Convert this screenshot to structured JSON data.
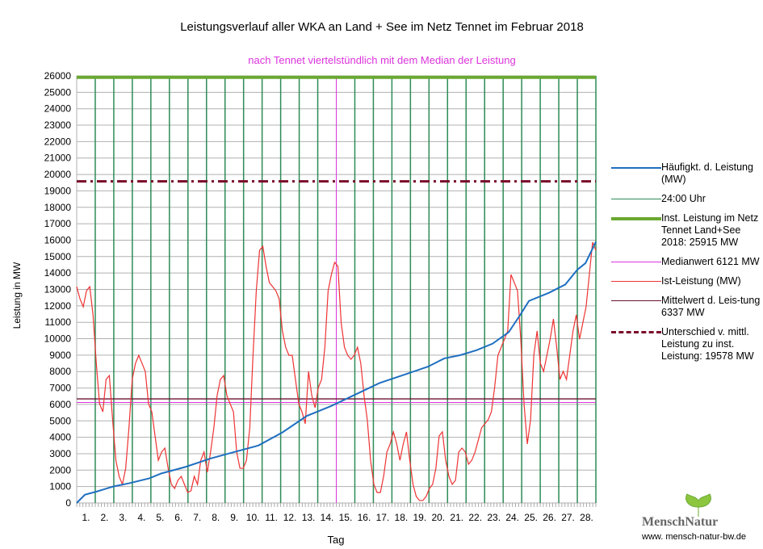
{
  "chart_data": {
    "type": "line",
    "title": "Leistungsverlauf aller WKA an Land + See im Netz Tennet im Februar 2018",
    "subtitle": "nach Tennet viertelstündlich mit dem Median der Leistung",
    "xlabel": "Tag",
    "ylabel": "Leistung in MW",
    "ylim": [
      0,
      26000
    ],
    "xlim": [
      0,
      28
    ],
    "ytick_step": 1000,
    "xtick_labels": [
      "1.",
      "2.",
      "3.",
      "4.",
      "5.",
      "6.",
      "7.",
      "8.",
      "9.",
      "10.",
      "11.",
      "12.",
      "13.",
      "14.",
      "15.",
      "16.",
      "17.",
      "18.",
      "19.",
      "20.",
      "21.",
      "22.",
      "23.",
      "24.",
      "25.",
      "26.",
      "27.",
      "28."
    ],
    "grid": true,
    "legend_position": "right",
    "colors": {
      "ist": "#ee3333",
      "haeufigkeit": "#1f6fc0",
      "day_lines": "#2e8b57",
      "installed": "#6aa832",
      "median": "#dd33dd",
      "mean": "#6b1030",
      "difference": "#7a0a2a"
    },
    "series": [
      {
        "name": "Ist-Leistung (MW)",
        "values": [
          13170,
          12430,
          11940,
          12920,
          13170,
          11450,
          8500,
          6040,
          5550,
          7520,
          7760,
          5060,
          2600,
          1620,
          1130,
          2110,
          4570,
          7520,
          8500,
          8990,
          8500,
          8010,
          6040,
          5550,
          4080,
          2600,
          3100,
          3340,
          2110,
          1130,
          880,
          1380,
          1620,
          1130,
          640,
          740,
          1620,
          1130,
          2600,
          3100,
          1870,
          3100,
          4570,
          6540,
          7520,
          7760,
          6540,
          6040,
          5550,
          3100,
          2110,
          2110,
          2600,
          4570,
          8990,
          12920,
          15380,
          15620,
          14400,
          13420,
          13170,
          12920,
          12430,
          10470,
          9480,
          8990,
          8990,
          7520,
          6040,
          5550,
          4820,
          8010,
          6540,
          5800,
          7030,
          7520,
          9480,
          12920,
          13910,
          14650,
          14400,
          10960,
          9480,
          8990,
          8750,
          8990,
          9480,
          8500,
          6540,
          5060,
          2600,
          1130,
          640,
          640,
          1620,
          3100,
          3590,
          4330,
          3590,
          2600,
          3590,
          4330,
          2600,
          1130,
          390,
          150,
          150,
          390,
          880,
          1130,
          2110,
          4080,
          4330,
          2600,
          1620,
          1130,
          1380,
          3100,
          3340,
          3100,
          2360,
          2600,
          3100,
          3830,
          4570,
          4820,
          5060,
          5550,
          7030,
          8990,
          9480,
          9970,
          10470,
          13910,
          13420,
          12920,
          9970,
          6040,
          3590,
          5060,
          8990,
          10470,
          8500,
          8010,
          8990,
          9970,
          11200,
          9480,
          7520,
          8010,
          7520,
          8990,
          10470,
          11450,
          9970,
          10960,
          11940,
          13910,
          15870,
          15380
        ]
      },
      {
        "name": "Häufigkt. d. Leistung (MW)",
        "x": [
          0,
          0.44,
          1.09,
          1.96,
          2.83,
          3.92,
          4.57,
          5.88,
          7.19,
          8.49,
          9.8,
          11.1,
          12.41,
          13.72,
          15.03,
          16.33,
          17.64,
          18.95,
          19.82,
          20.69,
          21.56,
          22.43,
          23.3,
          23.95,
          24.39,
          25.48,
          26.35,
          27.0,
          27.44,
          28
        ],
        "values": [
          0,
          500,
          700,
          1000,
          1200,
          1500,
          1800,
          2200,
          2700,
          3100,
          3500,
          4300,
          5300,
          5900,
          6600,
          7300,
          7800,
          8300,
          8800,
          9000,
          9300,
          9700,
          10400,
          11500,
          12300,
          12800,
          13300,
          14200,
          14600,
          15900
        ]
      },
      {
        "name": "Inst. Leistung im Netz Tennet Land+See 2018: 25915 MW",
        "value": 25915
      },
      {
        "name": "Medianwert 6121 MW",
        "value": 6121,
        "median_day": 14
      },
      {
        "name": "Mittelwert d. Leistung 6337 MW",
        "value": 6337
      },
      {
        "name": "Unterschied v. mittl. Leistung zu inst. Leistung: 19578 MW",
        "value": 19578
      }
    ]
  },
  "legend": [
    "Häufigkt. d. Leistung (MW)",
    "24:00 Uhr",
    "Inst. Leistung im Netz Tennet Land+See 2018: 25915 MW",
    "Medianwert 6121 MW",
    "Ist-Leistung (MW)",
    "Mittelwert d. Leis-tung 6337 MW",
    "Unterschied v. mittl. Leistung zu inst. Leistung: 19578 MW"
  ],
  "logo": {
    "name": "MenschNatur",
    "url": "www. mensch-natur-bw.de"
  }
}
